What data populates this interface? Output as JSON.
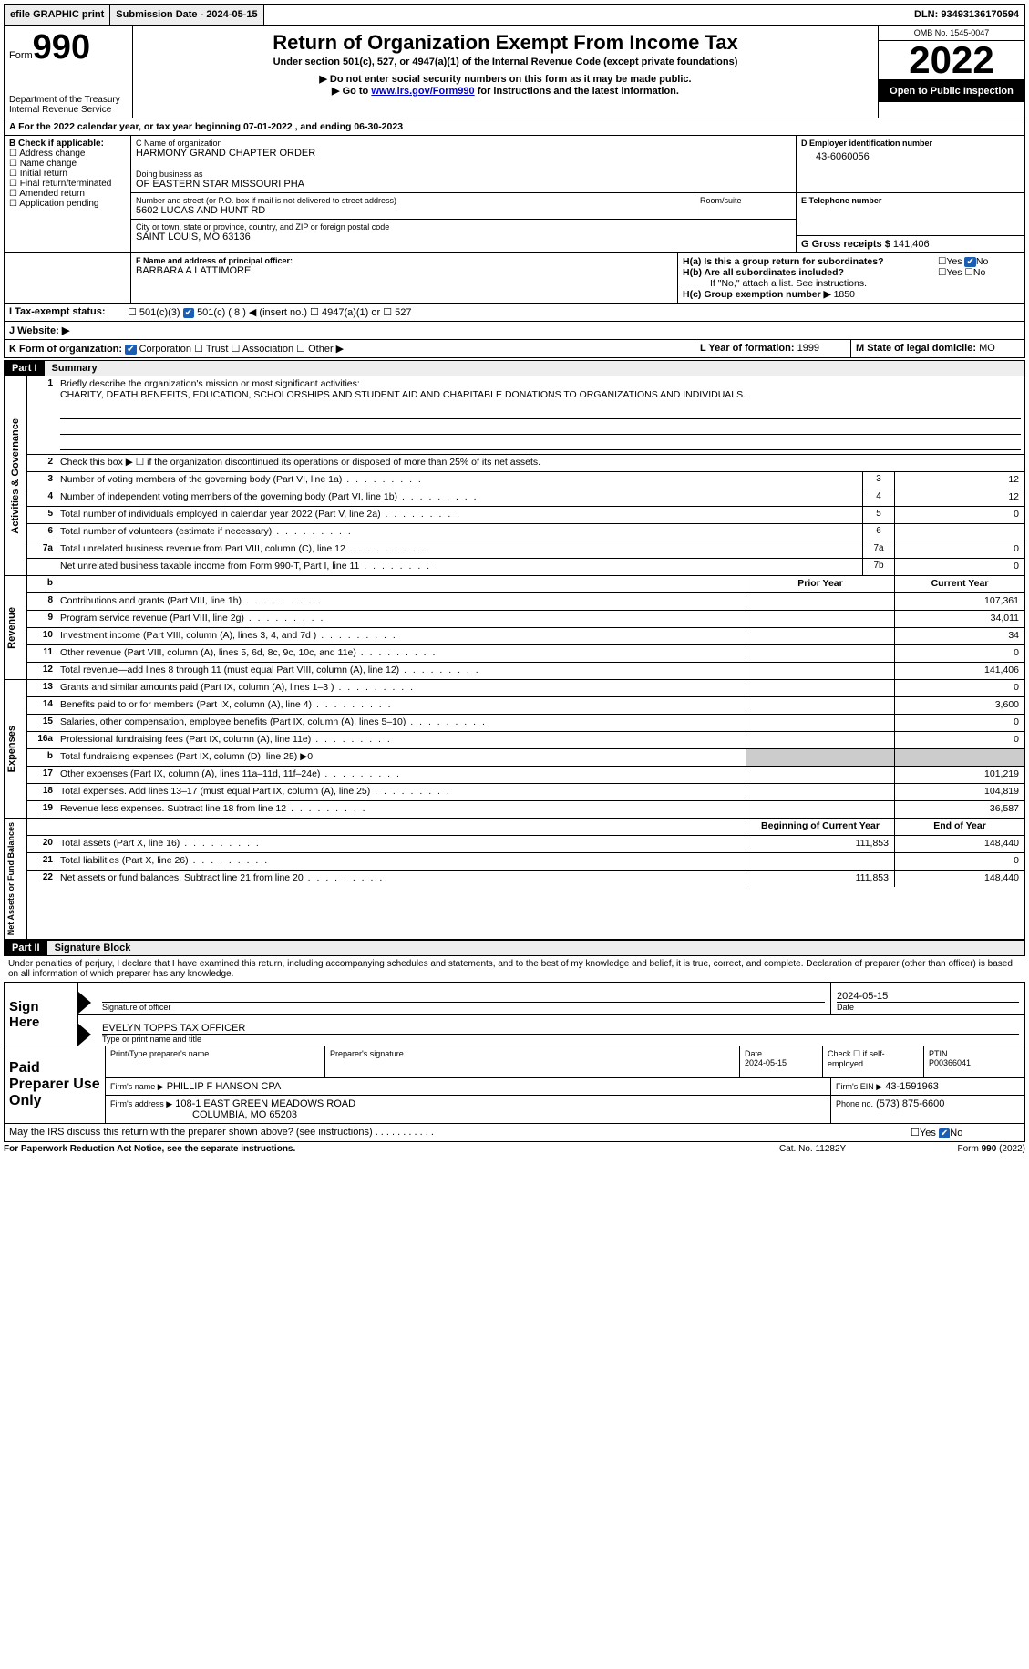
{
  "topbar": {
    "efile": "efile GRAPHIC print",
    "submission_label": "Submission Date - 2024-05-15",
    "dln_label": "DLN: 93493136170594"
  },
  "header": {
    "form_label": "Form",
    "form_number": "990",
    "dept": "Department of the Treasury",
    "irs": "Internal Revenue Service",
    "title": "Return of Organization Exempt From Income Tax",
    "subtitle": "Under section 501(c), 527, or 4947(a)(1) of the Internal Revenue Code (except private foundations)",
    "note1": "▶ Do not enter social security numbers on this form as it may be made public.",
    "note2_pre": "▶ Go to ",
    "note2_link": "www.irs.gov/Form990",
    "note2_post": " for instructions and the latest information.",
    "omb": "OMB No. 1545-0047",
    "year": "2022",
    "open": "Open to Public Inspection"
  },
  "A": {
    "line": "A For the 2022 calendar year, or tax year beginning 07-01-2022    , and ending 06-30-2023"
  },
  "B": {
    "title": "B Check if applicable:",
    "items": [
      "Address change",
      "Name change",
      "Initial return",
      "Final return/terminated",
      "Amended return",
      "Application pending"
    ]
  },
  "C": {
    "name_label": "C Name of organization",
    "name": "HARMONY GRAND CHAPTER ORDER",
    "dba_label": "Doing business as",
    "dba": "OF EASTERN STAR MISSOURI PHA",
    "street_label": "Number and street (or P.O. box if mail is not delivered to street address)",
    "street": "5602 LUCAS AND HUNT RD",
    "room_label": "Room/suite",
    "city_label": "City or town, state or province, country, and ZIP or foreign postal code",
    "city": "SAINT LOUIS, MO  63136"
  },
  "D": {
    "label": "D Employer identification number",
    "value": "43-6060056"
  },
  "E": {
    "label": "E Telephone number"
  },
  "G": {
    "label": "G Gross receipts $",
    "value": "141,406"
  },
  "F": {
    "label": "F  Name and address of principal officer:",
    "name": "BARBARA A LATTIMORE"
  },
  "H": {
    "a_label": "H(a)  Is this a group return for subordinates?",
    "a_yes": "Yes",
    "a_no": "No",
    "b_label": "H(b)  Are all subordinates included?",
    "b_note": "If \"No,\" attach a list. See instructions.",
    "c_label": "H(c)  Group exemption number ▶",
    "c_value": "1850"
  },
  "I": {
    "label": "I   Tax-exempt status:",
    "opts": [
      "501(c)(3)",
      "501(c) ( 8 ) ◀ (insert no.)",
      "4947(a)(1) or",
      "527"
    ]
  },
  "J": {
    "label": "J   Website: ▶"
  },
  "K": {
    "label": "K Form of organization:",
    "opts": [
      "Corporation",
      "Trust",
      "Association",
      "Other ▶"
    ]
  },
  "L": {
    "label": "L Year of formation:",
    "value": "1999"
  },
  "M": {
    "label": "M State of legal domicile:",
    "value": "MO"
  },
  "part1": {
    "label": "Part I",
    "title": "Summary",
    "brief_label": "Briefly describe the organization's mission or most significant activities:",
    "brief": "CHARITY, DEATH BENEFITS, EDUCATION, SCHOLORSHIPS AND STUDENT AID AND CHARITABLE DONATIONS TO ORGANIZATIONS AND INDIVIDUALS.",
    "line2": "Check this box ▶ ☐ if the organization discontinued its operations or disposed of more than 25% of its net assets.",
    "sections": {
      "gov": "Activities & Governance",
      "rev": "Revenue",
      "exp": "Expenses",
      "net": "Net Assets or Fund Balances"
    },
    "gov_lines": [
      {
        "n": "3",
        "t": "Number of voting members of the governing body (Part VI, line 1a)",
        "box": "3",
        "v": "12"
      },
      {
        "n": "4",
        "t": "Number of independent voting members of the governing body (Part VI, line 1b)",
        "box": "4",
        "v": "12"
      },
      {
        "n": "5",
        "t": "Total number of individuals employed in calendar year 2022 (Part V, line 2a)",
        "box": "5",
        "v": "0"
      },
      {
        "n": "6",
        "t": "Total number of volunteers (estimate if necessary)",
        "box": "6",
        "v": ""
      },
      {
        "n": "7a",
        "t": "Total unrelated business revenue from Part VIII, column (C), line 12",
        "box": "7a",
        "v": "0"
      },
      {
        "n": "",
        "t": "Net unrelated business taxable income from Form 990-T, Part I, line 11",
        "box": "7b",
        "v": "0"
      }
    ],
    "col_hdr_prior": "Prior Year",
    "col_hdr_curr": "Current Year",
    "rev_lines": [
      {
        "n": "8",
        "t": "Contributions and grants (Part VIII, line 1h)",
        "p": "",
        "c": "107,361"
      },
      {
        "n": "9",
        "t": "Program service revenue (Part VIII, line 2g)",
        "p": "",
        "c": "34,011"
      },
      {
        "n": "10",
        "t": "Investment income (Part VIII, column (A), lines 3, 4, and 7d )",
        "p": "",
        "c": "34"
      },
      {
        "n": "11",
        "t": "Other revenue (Part VIII, column (A), lines 5, 6d, 8c, 9c, 10c, and 11e)",
        "p": "",
        "c": "0"
      },
      {
        "n": "12",
        "t": "Total revenue—add lines 8 through 11 (must equal Part VIII, column (A), line 12)",
        "p": "",
        "c": "141,406"
      }
    ],
    "exp_lines": [
      {
        "n": "13",
        "t": "Grants and similar amounts paid (Part IX, column (A), lines 1–3 )",
        "p": "",
        "c": "0"
      },
      {
        "n": "14",
        "t": "Benefits paid to or for members (Part IX, column (A), line 4)",
        "p": "",
        "c": "3,600"
      },
      {
        "n": "15",
        "t": "Salaries, other compensation, employee benefits (Part IX, column (A), lines 5–10)",
        "p": "",
        "c": "0"
      },
      {
        "n": "16a",
        "t": "Professional fundraising fees (Part IX, column (A), line 11e)",
        "p": "",
        "c": "0"
      },
      {
        "n": "b",
        "t": "Total fundraising expenses (Part IX, column (D), line 25) ▶0",
        "p": "grey",
        "c": "grey"
      },
      {
        "n": "17",
        "t": "Other expenses (Part IX, column (A), lines 11a–11d, 11f–24e)",
        "p": "",
        "c": "101,219"
      },
      {
        "n": "18",
        "t": "Total expenses. Add lines 13–17 (must equal Part IX, column (A), line 25)",
        "p": "",
        "c": "104,819"
      },
      {
        "n": "19",
        "t": "Revenue less expenses. Subtract line 18 from line 12",
        "p": "",
        "c": "36,587"
      }
    ],
    "net_hdr_beg": "Beginning of Current Year",
    "net_hdr_end": "End of Year",
    "net_lines": [
      {
        "n": "20",
        "t": "Total assets (Part X, line 16)",
        "p": "111,853",
        "c": "148,440"
      },
      {
        "n": "21",
        "t": "Total liabilities (Part X, line 26)",
        "p": "",
        "c": "0"
      },
      {
        "n": "22",
        "t": "Net assets or fund balances. Subtract line 21 from line 20",
        "p": "111,853",
        "c": "148,440"
      }
    ]
  },
  "part2": {
    "label": "Part II",
    "title": "Signature Block",
    "penalties": "Under penalties of perjury, I declare that I have examined this return, including accompanying schedules and statements, and to the best of my knowledge and belief, it is true, correct, and complete. Declaration of preparer (other than officer) is based on all information of which preparer has any knowledge.",
    "sign_here": "Sign Here",
    "sig_officer": "Signature of officer",
    "sig_date": "Date",
    "sig_date_val": "2024-05-15",
    "officer_name": "EVELYN TOPPS  TAX OFFICER",
    "type_name": "Type or print name and title",
    "paid": "Paid Preparer Use Only",
    "prep_name_label": "Print/Type preparer's name",
    "prep_sig_label": "Preparer's signature",
    "prep_date_label": "Date",
    "prep_date": "2024-05-15",
    "check_if": "Check ☐ if self-employed",
    "ptin_label": "PTIN",
    "ptin": "P00366041",
    "firm_name_label": "Firm's name    ▶",
    "firm_name": "PHILLIP F HANSON CPA",
    "firm_ein_label": "Firm's EIN ▶",
    "firm_ein": "43-1591963",
    "firm_addr_label": "Firm's address ▶",
    "firm_addr1": "108-1 EAST GREEN MEADOWS ROAD",
    "firm_addr2": "COLUMBIA, MO  65203",
    "phone_label": "Phone no.",
    "phone": "(573) 875-6600",
    "discuss": "May the IRS discuss this return with the preparer shown above? (see instructions)",
    "discuss_yes": "Yes",
    "discuss_no": "No"
  },
  "footer": {
    "left": "For Paperwork Reduction Act Notice, see the separate instructions.",
    "mid": "Cat. No. 11282Y",
    "right": "Form 990 (2022)"
  }
}
